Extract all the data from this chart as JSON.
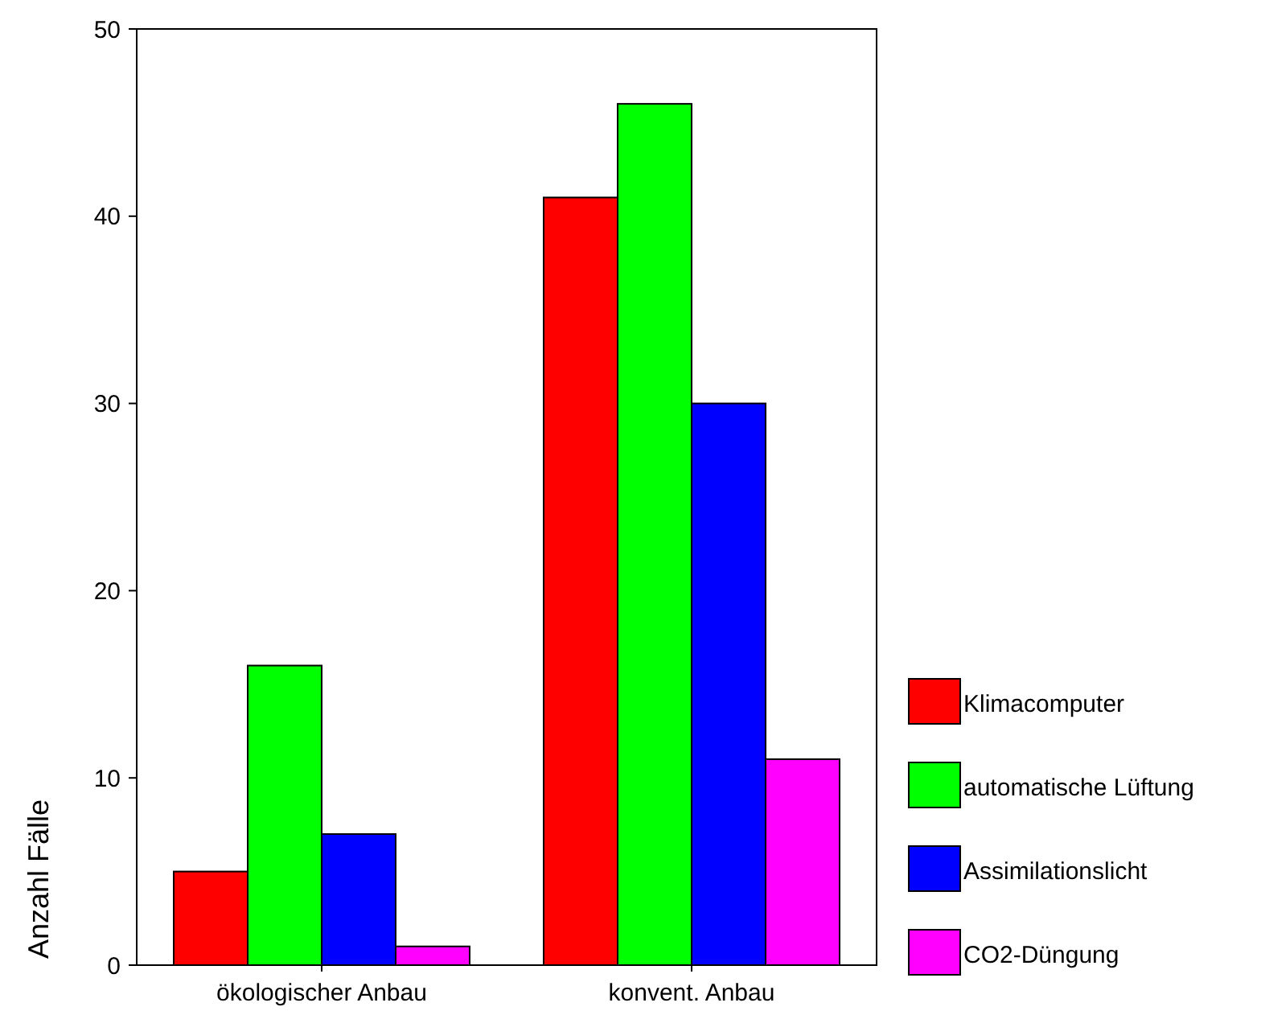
{
  "chart_data": {
    "type": "bar",
    "ylabel": "Anzahl Fälle",
    "categories": [
      "ökologischer Anbau",
      "konvent. Anbau"
    ],
    "series": [
      {
        "name": "Klimacomputer",
        "color": "#ff0000",
        "values": [
          5,
          41
        ]
      },
      {
        "name": "automatische Lüftung",
        "color": "#00ff00",
        "values": [
          16,
          46
        ]
      },
      {
        "name": "Assimilationslicht",
        "color": "#0000ff",
        "values": [
          7,
          30
        ]
      },
      {
        "name": "CO2-Düngung",
        "color": "#ff00ff",
        "values": [
          1,
          11
        ]
      }
    ],
    "ylim": [
      0,
      50
    ],
    "yticks": [
      0,
      10,
      20,
      30,
      40,
      50
    ],
    "grid": false,
    "legend": "right"
  }
}
